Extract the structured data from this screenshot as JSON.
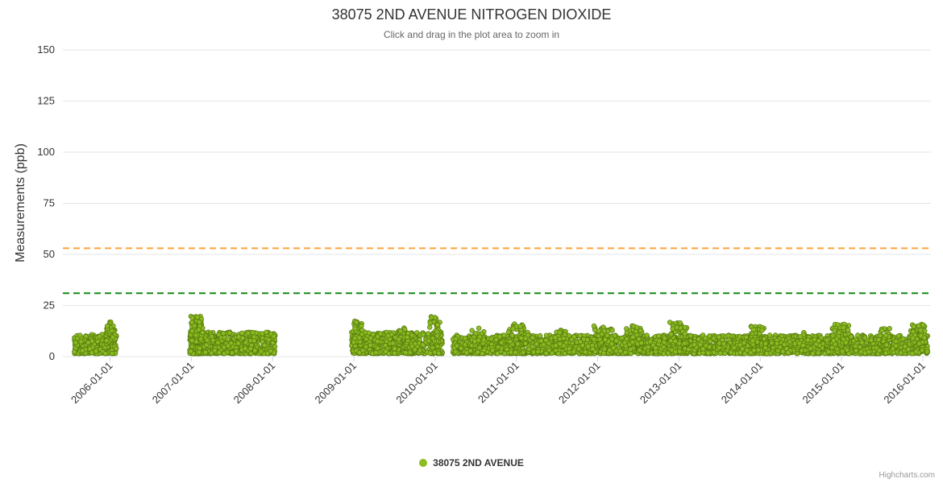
{
  "title": {
    "text": "38075 2ND AVENUE NITROGEN DIOXIDE"
  },
  "subtitle": {
    "text": "Click and drag in the plot area to zoom in"
  },
  "legend": {
    "items": [
      {
        "label": "38075 2ND AVENUE",
        "color": "#8bbc21"
      }
    ]
  },
  "credits": {
    "text": "Highcharts.com"
  },
  "chart_data": {
    "type": "scatter",
    "title": "38075 2ND AVENUE NITROGEN DIOXIDE",
    "subtitle": "Click and drag in the plot area to zoom in",
    "xlabel": "",
    "ylabel": "Measurements (ppb)",
    "ylim": [
      0,
      150
    ],
    "yticks": [
      0,
      25,
      50,
      75,
      100,
      125,
      150
    ],
    "grid": true,
    "legend_position": "bottom-center",
    "x_axis": {
      "type": "datetime",
      "range_years": [
        2005.42,
        2016.1
      ],
      "tick_years": [
        2006,
        2007,
        2008,
        2009,
        2010,
        2011,
        2012,
        2013,
        2014,
        2015,
        2016
      ],
      "tick_labels": [
        "2006-01-01",
        "2007-01-01",
        "2008-01-01",
        "2009-01-01",
        "2010-01-01",
        "2011-01-01",
        "2012-01-01",
        "2013-01-01",
        "2014-01-01",
        "2015-01-01",
        "2016-01-01"
      ],
      "label_rotation": -45
    },
    "plot_lines": [
      {
        "name": "orange-threshold",
        "value": 53,
        "color": "#ffa33a",
        "style": "dashed"
      },
      {
        "name": "green-threshold",
        "value": 31,
        "color": "#128a12",
        "style": "dashed"
      }
    ],
    "series": [
      {
        "name": "38075 2ND AVENUE",
        "color": "#8bbc21",
        "marker_stroke": "#5a7d10",
        "marker_radius": 2.8,
        "value_range_ppb": [
          0.5,
          20
        ],
        "typical_band_ppb": [
          2,
          10
        ],
        "data_gaps": [
          "2006-02 to 2006-12",
          "2008-01 to 2008-12",
          "2010-02 to 2010-03"
        ],
        "point_clusters": [
          {
            "x0": 2005.56,
            "x1": 2006.08,
            "n": 300,
            "lo": 1.5,
            "hi": 11,
            "skew": 1.6
          },
          {
            "x0": 2005.95,
            "x1": 2006.07,
            "n": 40,
            "lo": 7,
            "hi": 17,
            "skew": 1.2
          },
          {
            "x0": 2006.98,
            "x1": 2008.03,
            "n": 620,
            "lo": 1.5,
            "hi": 12,
            "skew": 1.6
          },
          {
            "x0": 2006.99,
            "x1": 2007.14,
            "n": 90,
            "lo": 7,
            "hi": 20,
            "skew": 1.2
          },
          {
            "x0": 2007.55,
            "x1": 2007.8,
            "n": 60,
            "lo": 3,
            "hi": 12,
            "skew": 1.4
          },
          {
            "x0": 2008.97,
            "x1": 2010.09,
            "n": 640,
            "lo": 1.5,
            "hi": 12,
            "skew": 1.6
          },
          {
            "x0": 2008.99,
            "x1": 2009.1,
            "n": 45,
            "lo": 7,
            "hi": 18,
            "skew": 1.2
          },
          {
            "x0": 2009.55,
            "x1": 2009.72,
            "n": 30,
            "lo": 5,
            "hi": 14,
            "skew": 1.3
          },
          {
            "x0": 2009.93,
            "x1": 2010.06,
            "n": 35,
            "lo": 7,
            "hi": 20,
            "skew": 1.2
          },
          {
            "x0": 2010.22,
            "x1": 2016.06,
            "n": 2600,
            "lo": 1.5,
            "hi": 10.5,
            "skew": 1.6
          },
          {
            "x0": 2010.45,
            "x1": 2010.6,
            "n": 30,
            "lo": 5,
            "hi": 14,
            "skew": 1.2
          },
          {
            "x0": 2010.9,
            "x1": 2011.15,
            "n": 60,
            "lo": 6,
            "hi": 16,
            "skew": 1.2
          },
          {
            "x0": 2011.45,
            "x1": 2011.62,
            "n": 30,
            "lo": 5,
            "hi": 13,
            "skew": 1.2
          },
          {
            "x0": 2011.95,
            "x1": 2012.18,
            "n": 55,
            "lo": 6,
            "hi": 15,
            "skew": 1.2
          },
          {
            "x0": 2012.35,
            "x1": 2012.55,
            "n": 40,
            "lo": 6,
            "hi": 15,
            "skew": 1.2
          },
          {
            "x0": 2012.88,
            "x1": 2013.1,
            "n": 55,
            "lo": 6,
            "hi": 17,
            "skew": 1.2
          },
          {
            "x0": 2013.88,
            "x1": 2014.05,
            "n": 40,
            "lo": 6,
            "hi": 15,
            "skew": 1.2
          },
          {
            "x0": 2014.4,
            "x1": 2014.55,
            "n": 25,
            "lo": 5,
            "hi": 13,
            "skew": 1.2
          },
          {
            "x0": 2014.88,
            "x1": 2015.1,
            "n": 50,
            "lo": 6,
            "hi": 16,
            "skew": 1.2
          },
          {
            "x0": 2015.45,
            "x1": 2015.6,
            "n": 30,
            "lo": 5,
            "hi": 14,
            "skew": 1.2
          },
          {
            "x0": 2015.85,
            "x1": 2016.04,
            "n": 50,
            "lo": 6,
            "hi": 16,
            "skew": 1.2
          }
        ]
      }
    ],
    "colors": {
      "grid_line": "#e6e6e6",
      "tick_mark": "#ccd6eb",
      "axis_label": "#333333",
      "title": "#333333",
      "subtitle": "#666666"
    }
  }
}
